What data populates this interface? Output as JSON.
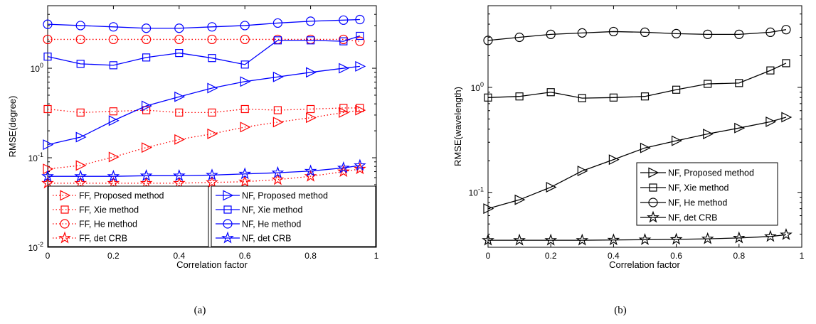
{
  "chart_data": [
    {
      "type": "line",
      "caption": "(a)",
      "xlabel": "Correlation factor",
      "ylabel": "RMSE(degree)",
      "yscale": "log",
      "xlim": [
        0,
        1
      ],
      "ylim": [
        0.01,
        5
      ],
      "grid": false,
      "x_ticks": [
        "0",
        "0.2",
        "0.4",
        "0.6",
        "0.8",
        "1"
      ],
      "y_ticks": [
        {
          "base": "10",
          "exp": "-2"
        },
        {
          "base": "10",
          "exp": "-1"
        },
        {
          "base": "10",
          "exp": "0"
        }
      ],
      "legend_left": [
        "FF, Proposed method",
        "FF, Xie method",
        "FF, He method",
        "FF, det CRB"
      ],
      "legend_right": [
        "NF, Proposed method",
        "NF, Xie method",
        "NF, He method",
        "NF, det CRB"
      ],
      "x": [
        0,
        0.1,
        0.2,
        0.3,
        0.4,
        0.5,
        0.6,
        0.7,
        0.8,
        0.9,
        0.95
      ],
      "series": [
        {
          "name": "FF, Proposed method",
          "color": "#ff0000",
          "style": "dotted",
          "marker": "triangle-right",
          "values": [
            0.075,
            0.082,
            0.102,
            0.13,
            0.16,
            0.185,
            0.22,
            0.25,
            0.28,
            0.32,
            0.34
          ]
        },
        {
          "name": "FF, Xie method",
          "color": "#ff0000",
          "style": "dotted",
          "marker": "square",
          "values": [
            0.35,
            0.32,
            0.33,
            0.34,
            0.32,
            0.32,
            0.35,
            0.34,
            0.35,
            0.36,
            0.36
          ]
        },
        {
          "name": "FF, He method",
          "color": "#ff0000",
          "style": "dotted",
          "marker": "circle",
          "values": [
            2.1,
            2.1,
            2.1,
            2.1,
            2.1,
            2.1,
            2.1,
            2.1,
            2.1,
            2.1,
            2.0
          ]
        },
        {
          "name": "FF, det CRB",
          "color": "#ff0000",
          "style": "dotted",
          "marker": "star",
          "values": [
            0.052,
            0.052,
            0.052,
            0.052,
            0.052,
            0.053,
            0.054,
            0.057,
            0.062,
            0.07,
            0.075
          ]
        },
        {
          "name": "NF, Proposed method",
          "color": "#0000ff",
          "style": "solid",
          "marker": "triangle-right",
          "values": [
            0.14,
            0.17,
            0.26,
            0.38,
            0.48,
            0.6,
            0.71,
            0.8,
            0.9,
            1.0,
            1.05
          ]
        },
        {
          "name": "NF, Xie method",
          "color": "#0000ff",
          "style": "solid",
          "marker": "square",
          "values": [
            1.35,
            1.12,
            1.08,
            1.32,
            1.48,
            1.3,
            1.1,
            2.05,
            2.05,
            2.0,
            2.3
          ]
        },
        {
          "name": "NF, He method",
          "color": "#0000ff",
          "style": "solid",
          "marker": "circle",
          "values": [
            3.1,
            3.0,
            2.9,
            2.8,
            2.8,
            2.9,
            3.0,
            3.2,
            3.35,
            3.45,
            3.5
          ]
        },
        {
          "name": "NF, det CRB",
          "color": "#0000ff",
          "style": "solid",
          "marker": "star",
          "values": [
            0.062,
            0.062,
            0.062,
            0.063,
            0.063,
            0.064,
            0.066,
            0.068,
            0.071,
            0.077,
            0.082
          ]
        }
      ]
    },
    {
      "type": "line",
      "caption": "(b)",
      "xlabel": "Correlation factor",
      "ylabel": "RMSE(wavelength)",
      "yscale": "log",
      "xlim": [
        0,
        1
      ],
      "ylim": [
        0.03,
        6
      ],
      "grid": false,
      "x_ticks": [
        "0",
        "0.2",
        "0.4",
        "0.6",
        "0.8",
        "1"
      ],
      "y_ticks": [
        {
          "base": "10",
          "exp": "-1"
        },
        {
          "base": "10",
          "exp": "0"
        }
      ],
      "legend": [
        "NF, Proposed method",
        "NF, Xie method",
        "NF, He method",
        "NF, det CRB"
      ],
      "x": [
        0,
        0.1,
        0.2,
        0.3,
        0.4,
        0.5,
        0.6,
        0.7,
        0.8,
        0.9,
        0.95
      ],
      "series": [
        {
          "name": "NF, Proposed method",
          "color": "#000000",
          "style": "solid",
          "marker": "triangle-right",
          "values": [
            0.07,
            0.085,
            0.112,
            0.16,
            0.205,
            0.265,
            0.31,
            0.36,
            0.41,
            0.47,
            0.52
          ]
        },
        {
          "name": "NF, Xie method",
          "color": "#000000",
          "style": "solid",
          "marker": "square",
          "values": [
            0.8,
            0.82,
            0.9,
            0.79,
            0.8,
            0.82,
            0.95,
            1.08,
            1.1,
            1.45,
            1.7
          ]
        },
        {
          "name": "NF, He method",
          "color": "#000000",
          "style": "solid",
          "marker": "circle",
          "values": [
            2.8,
            3.0,
            3.2,
            3.3,
            3.4,
            3.35,
            3.25,
            3.2,
            3.2,
            3.35,
            3.55
          ]
        },
        {
          "name": "NF, det CRB",
          "color": "#000000",
          "style": "solid",
          "marker": "star",
          "values": [
            0.035,
            0.035,
            0.035,
            0.035,
            0.0352,
            0.0354,
            0.0357,
            0.0361,
            0.0368,
            0.038,
            0.0395
          ]
        }
      ]
    }
  ]
}
